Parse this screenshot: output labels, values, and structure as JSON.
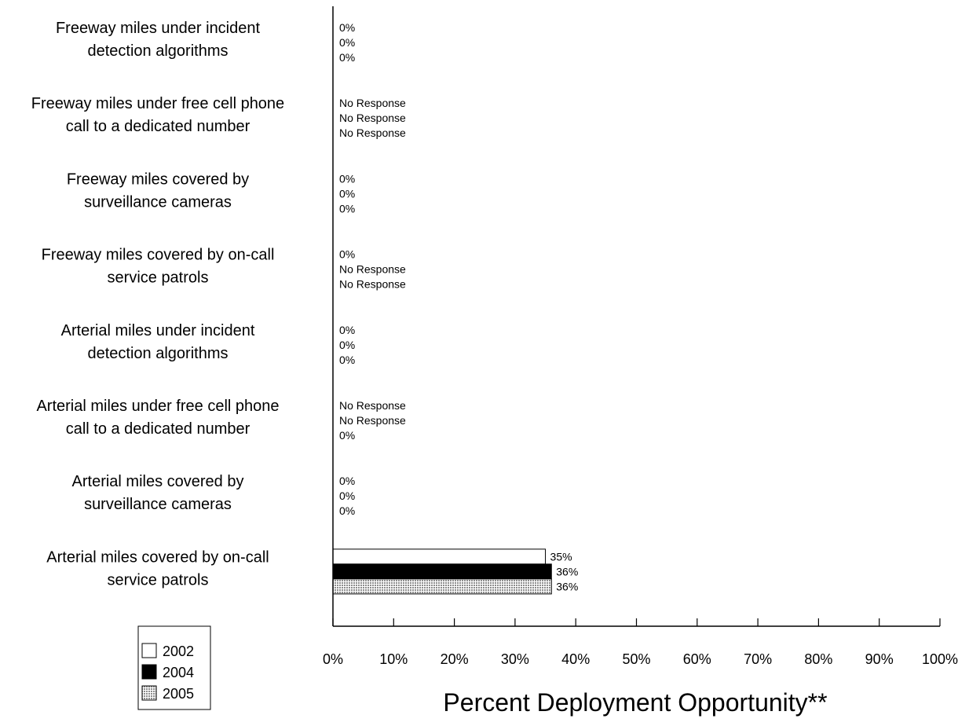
{
  "chart_data": {
    "type": "bar",
    "orientation": "horizontal",
    "xlabel": "Percent Deployment Opportunity**",
    "xlim": [
      0,
      100
    ],
    "xticks": [
      "0%",
      "10%",
      "20%",
      "30%",
      "40%",
      "50%",
      "60%",
      "70%",
      "80%",
      "90%",
      "100%"
    ],
    "categories": [
      [
        "Freeway miles under incident",
        "detection algorithms"
      ],
      [
        "Freeway miles under free cell phone",
        "call to a dedicated number"
      ],
      [
        "Freeway miles covered by",
        "surveillance cameras"
      ],
      [
        "Freeway miles covered by on-call",
        "service patrols"
      ],
      [
        "Arterial miles under incident",
        "detection algorithms"
      ],
      [
        "Arterial miles under free cell phone",
        "call to a dedicated number"
      ],
      [
        "Arterial miles covered by",
        "surveillance cameras"
      ],
      [
        "Arterial miles covered by on-call",
        "service patrols"
      ]
    ],
    "series": [
      {
        "name": "2002",
        "fill": "#ffffff",
        "values": [
          0,
          null,
          0,
          0,
          0,
          null,
          0,
          35
        ],
        "labels": [
          "0%",
          "No Response",
          "0%",
          "0%",
          "0%",
          "No Response",
          "0%",
          "35%"
        ]
      },
      {
        "name": "2004",
        "fill": "#000000",
        "values": [
          0,
          null,
          0,
          null,
          0,
          null,
          0,
          36
        ],
        "labels": [
          "0%",
          "No Response",
          "0%",
          "No Response",
          "0%",
          "No Response",
          "0%",
          "36%"
        ]
      },
      {
        "name": "2005",
        "fill": "pattern-grey-dots",
        "values": [
          0,
          null,
          0,
          null,
          0,
          0,
          0,
          36
        ],
        "labels": [
          "0%",
          "No Response",
          "0%",
          "No Response",
          "0%",
          "0%",
          "0%",
          "36%"
        ]
      }
    ],
    "legend": {
      "position": "bottom-left"
    },
    "grid": false
  }
}
